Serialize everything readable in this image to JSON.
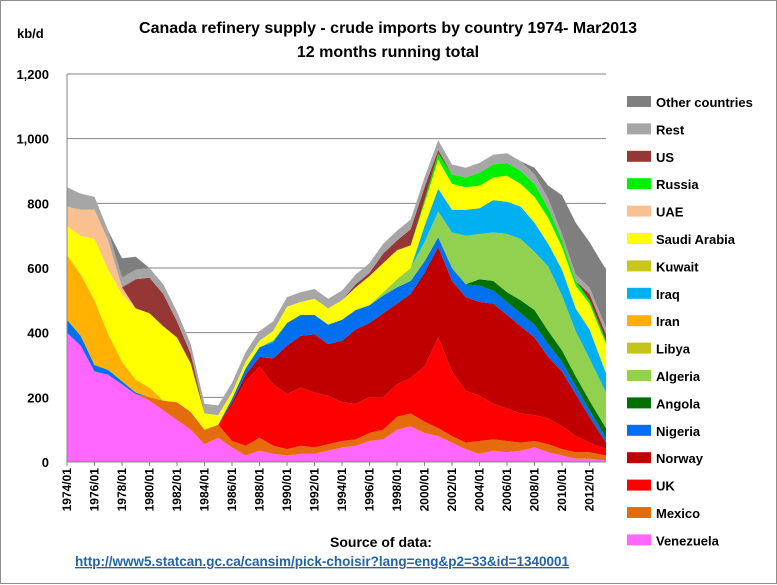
{
  "chart_data": {
    "type": "area",
    "stacked": true,
    "title": "Canada  refinery supply - crude imports by country 1974- Mar2013",
    "subtitle": "12 months running total",
    "ylabel": "kb/d",
    "ylim": [
      0,
      1200
    ],
    "yticks": [
      "0",
      "200",
      "400",
      "600",
      "800",
      "1,000",
      "1,200"
    ],
    "x": [
      1974,
      1975,
      1976,
      1977,
      1978,
      1979,
      1980,
      1981,
      1982,
      1983,
      1984,
      1985,
      1986,
      1987,
      1988,
      1989,
      1990,
      1991,
      1992,
      1993,
      1994,
      1995,
      1996,
      1997,
      1998,
      1999,
      2000,
      2001,
      2002,
      2003,
      2004,
      2005,
      2006,
      2007,
      2008,
      2009,
      2010,
      2011,
      2012,
      2013.2
    ],
    "xlim": [
      1974,
      2013.2
    ],
    "xticks": [
      "1974/01",
      "1976/01",
      "1978/01",
      "1980/01",
      "1982/01",
      "1984/01",
      "1986/01",
      "1988/01",
      "1990/01",
      "1992/01",
      "1994/01",
      "1996/01",
      "1998/01",
      "2000/01",
      "2002/01",
      "2004/01",
      "2006/01",
      "2008/01",
      "2010/01",
      "2012/01"
    ],
    "grid": true,
    "legend_position": "right",
    "series": [
      {
        "name": "Venezuela",
        "color": "#ff66ff",
        "values": [
          400,
          360,
          280,
          270,
          240,
          210,
          190,
          160,
          130,
          100,
          55,
          75,
          45,
          20,
          35,
          25,
          20,
          25,
          25,
          35,
          45,
          50,
          65,
          70,
          100,
          110,
          90,
          80,
          60,
          40,
          25,
          35,
          30,
          35,
          45,
          30,
          20,
          10,
          10,
          5
        ]
      },
      {
        "name": "Mexico",
        "color": "#e46c0a",
        "values": [
          0,
          0,
          0,
          0,
          0,
          0,
          10,
          30,
          55,
          55,
          45,
          40,
          20,
          30,
          40,
          25,
          20,
          25,
          20,
          20,
          20,
          20,
          25,
          30,
          40,
          40,
          35,
          25,
          20,
          20,
          40,
          35,
          35,
          25,
          20,
          25,
          20,
          20,
          20,
          15
        ]
      },
      {
        "name": "UK",
        "color": "#ff0000",
        "values": [
          0,
          0,
          0,
          0,
          0,
          0,
          0,
          0,
          0,
          0,
          0,
          0,
          110,
          200,
          220,
          190,
          170,
          180,
          170,
          150,
          120,
          110,
          110,
          100,
          100,
          110,
          170,
          280,
          200,
          160,
          140,
          110,
          100,
          90,
          80,
          80,
          70,
          50,
          30,
          20
        ]
      },
      {
        "name": "Norway",
        "color": "#c00000",
        "values": [
          0,
          0,
          0,
          0,
          0,
          0,
          0,
          0,
          0,
          0,
          0,
          0,
          10,
          20,
          30,
          80,
          150,
          160,
          180,
          160,
          190,
          230,
          230,
          260,
          250,
          260,
          290,
          280,
          280,
          290,
          290,
          310,
          290,
          270,
          240,
          190,
          170,
          130,
          80,
          20
        ]
      },
      {
        "name": "Nigeria",
        "color": "#0070f0",
        "values": [
          40,
          30,
          20,
          15,
          10,
          5,
          0,
          0,
          0,
          0,
          0,
          0,
          10,
          20,
          30,
          50,
          70,
          65,
          60,
          60,
          65,
          60,
          55,
          55,
          50,
          40,
          35,
          30,
          40,
          40,
          50,
          40,
          40,
          40,
          40,
          40,
          30,
          25,
          20,
          15
        ]
      },
      {
        "name": "Angola",
        "color": "#007000",
        "values": [
          0,
          0,
          0,
          0,
          0,
          0,
          0,
          0,
          0,
          0,
          0,
          0,
          0,
          0,
          0,
          0,
          0,
          0,
          0,
          0,
          0,
          0,
          0,
          0,
          0,
          0,
          0,
          0,
          0,
          0,
          20,
          30,
          30,
          40,
          45,
          40,
          35,
          30,
          30,
          30
        ]
      },
      {
        "name": "Algeria",
        "color": "#92d050",
        "values": [
          0,
          0,
          0,
          0,
          0,
          0,
          0,
          0,
          0,
          0,
          0,
          0,
          0,
          0,
          0,
          0,
          0,
          0,
          0,
          0,
          0,
          0,
          0,
          10,
          25,
          40,
          60,
          80,
          110,
          150,
          140,
          150,
          180,
          190,
          180,
          200,
          170,
          140,
          130,
          110
        ]
      },
      {
        "name": "Libya",
        "color": "#c4c41c",
        "values": [
          0,
          0,
          0,
          0,
          0,
          0,
          0,
          0,
          0,
          0,
          0,
          0,
          0,
          0,
          0,
          0,
          0,
          0,
          0,
          0,
          0,
          0,
          0,
          0,
          0,
          0,
          0,
          0,
          0,
          0,
          0,
          0,
          0,
          0,
          0,
          0,
          0,
          0,
          0,
          0
        ]
      },
      {
        "name": "Iran",
        "color": "#ffb000",
        "values": [
          200,
          190,
          200,
          110,
          60,
          40,
          30,
          0,
          0,
          0,
          0,
          0,
          0,
          0,
          0,
          0,
          0,
          0,
          0,
          0,
          0,
          0,
          0,
          0,
          0,
          0,
          0,
          0,
          0,
          0,
          0,
          0,
          0,
          0,
          0,
          0,
          0,
          0,
          0,
          0
        ]
      },
      {
        "name": "Iraq",
        "color": "#00b0f0",
        "values": [
          0,
          0,
          0,
          0,
          0,
          0,
          0,
          0,
          0,
          0,
          0,
          0,
          0,
          0,
          0,
          5,
          0,
          0,
          0,
          0,
          0,
          0,
          0,
          0,
          0,
          0,
          50,
          70,
          70,
          80,
          80,
          100,
          100,
          100,
          90,
          70,
          80,
          70,
          90,
          60
        ]
      },
      {
        "name": "Kuwait",
        "color": "#c9c61a",
        "values": [
          0,
          0,
          0,
          0,
          0,
          0,
          0,
          0,
          0,
          0,
          0,
          0,
          0,
          0,
          0,
          0,
          0,
          0,
          0,
          0,
          0,
          0,
          0,
          0,
          0,
          0,
          0,
          0,
          0,
          0,
          0,
          0,
          0,
          0,
          0,
          0,
          0,
          0,
          0,
          0
        ]
      },
      {
        "name": "Saudi Arabia",
        "color": "#ffff00",
        "values": [
          90,
          120,
          190,
          200,
          210,
          220,
          230,
          230,
          200,
          150,
          50,
          30,
          20,
          20,
          20,
          30,
          50,
          40,
          50,
          50,
          60,
          70,
          90,
          90,
          90,
          70,
          70,
          90,
          80,
          70,
          70,
          70,
          80,
          70,
          80,
          80,
          70,
          70,
          80,
          90
        ]
      },
      {
        "name": "UAE",
        "color": "#fac090",
        "values": [
          60,
          80,
          90,
          90,
          20,
          0,
          0,
          0,
          0,
          0,
          0,
          0,
          0,
          0,
          0,
          0,
          0,
          0,
          0,
          0,
          0,
          0,
          0,
          0,
          0,
          0,
          0,
          0,
          0,
          0,
          0,
          0,
          0,
          0,
          0,
          0,
          0,
          0,
          0,
          0
        ]
      },
      {
        "name": "Russia",
        "color": "#00ee00",
        "values": [
          0,
          0,
          0,
          0,
          0,
          0,
          0,
          0,
          0,
          0,
          0,
          0,
          0,
          0,
          0,
          0,
          0,
          0,
          0,
          0,
          0,
          0,
          0,
          0,
          0,
          0,
          10,
          20,
          30,
          30,
          40,
          40,
          40,
          40,
          40,
          30,
          20,
          15,
          10,
          10
        ]
      },
      {
        "name": "US",
        "color": "#953735",
        "values": [
          0,
          0,
          0,
          0,
          0,
          90,
          110,
          100,
          50,
          30,
          0,
          0,
          0,
          0,
          0,
          0,
          0,
          0,
          0,
          0,
          0,
          10,
          10,
          30,
          30,
          50,
          40,
          10,
          0,
          0,
          0,
          0,
          0,
          0,
          0,
          0,
          0,
          0,
          20,
          20
        ]
      },
      {
        "name": "Rest",
        "color": "#a6a6a6",
        "values": [
          60,
          50,
          40,
          30,
          30,
          30,
          30,
          30,
          30,
          30,
          30,
          30,
          30,
          30,
          30,
          30,
          30,
          30,
          30,
          30,
          30,
          30,
          30,
          30,
          30,
          30,
          30,
          30,
          30,
          30,
          30,
          30,
          30,
          30,
          30,
          30,
          20,
          20,
          20,
          20
        ]
      },
      {
        "name": "Other countries",
        "color": "#7f7f7f",
        "values": [
          0,
          0,
          0,
          0,
          60,
          40,
          0,
          0,
          0,
          0,
          0,
          0,
          0,
          0,
          0,
          0,
          0,
          0,
          0,
          0,
          0,
          0,
          0,
          0,
          0,
          0,
          0,
          0,
          0,
          0,
          0,
          0,
          0,
          0,
          20,
          40,
          120,
          160,
          140,
          180
        ]
      }
    ],
    "source_label": "Source of data:",
    "source_url": "http://www5.statcan.gc.ca/cansim/pick-choisir?lang=eng&p2=33&id=1340001"
  }
}
